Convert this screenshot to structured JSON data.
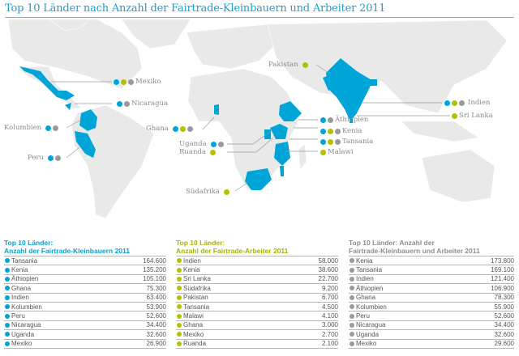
{
  "title": "Top 10 Länder nach Anzahl der Fairtrade-Kleinbauern und Arbeiter 2011",
  "colors": {
    "kleinbauern": "#00a5d8",
    "arbeiter": "#b3c200",
    "gesamt": "#9a9a9a",
    "map_land": "#e8e8e8",
    "highlight": "#00a5d8"
  },
  "map_labels": [
    {
      "name": "Mexiko",
      "dots": [
        "blue",
        "lime",
        "gray"
      ]
    },
    {
      "name": "Nicaragua",
      "dots": [
        "blue",
        "gray"
      ]
    },
    {
      "name": "Kolumbien",
      "dots": [
        "blue",
        "gray"
      ]
    },
    {
      "name": "Peru",
      "dots": [
        "blue",
        "gray"
      ]
    },
    {
      "name": "Ghana",
      "dots": [
        "blue",
        "lime",
        "gray"
      ]
    },
    {
      "name": "Uganda",
      "dots": [
        "blue",
        "gray"
      ]
    },
    {
      "name": "Ruanda",
      "dots": [
        "lime"
      ]
    },
    {
      "name": "Südafrika",
      "dots": [
        "lime"
      ]
    },
    {
      "name": "Pakistan",
      "dots": [
        "lime"
      ]
    },
    {
      "name": "Indien",
      "dots": [
        "blue",
        "lime",
        "gray"
      ]
    },
    {
      "name": "Sri Lanka",
      "dots": [
        "lime"
      ]
    },
    {
      "name": "Äthiopien",
      "dots": [
        "blue",
        "gray"
      ]
    },
    {
      "name": "Kenia",
      "dots": [
        "blue",
        "lime",
        "gray"
      ]
    },
    {
      "name": "Tansania",
      "dots": [
        "blue",
        "lime",
        "gray"
      ]
    },
    {
      "name": "Malawi",
      "dots": [
        "lime"
      ]
    }
  ],
  "tables": [
    {
      "title1": "Top 10 Länder:",
      "title2": "Anzahl der Fairtrade-Kleinbauern 2011",
      "rows": [
        [
          "Tansania",
          "164.600"
        ],
        [
          "Kenia",
          "135.200"
        ],
        [
          "Äthiopien",
          "105.100"
        ],
        [
          "Ghana",
          "75.300"
        ],
        [
          "Indien",
          "63.400"
        ],
        [
          "Kolumbien",
          "53.900"
        ],
        [
          "Peru",
          "52.600"
        ],
        [
          "Nicaragua",
          "34.400"
        ],
        [
          "Uganda",
          "32.600"
        ],
        [
          "Mexiko",
          "26.900"
        ]
      ]
    },
    {
      "title1": "Top 10 Länder:",
      "title2": "Anzahl der Fairtrade-Arbeiter 2011",
      "rows": [
        [
          "Indien",
          "58.000"
        ],
        [
          "Kenia",
          "38.600"
        ],
        [
          "Sri Lanka",
          "22.700"
        ],
        [
          "Südafrika",
          "9.200"
        ],
        [
          "Pakistan",
          "6.700"
        ],
        [
          "Tansania",
          "4.500"
        ],
        [
          "Malawi",
          "4.100"
        ],
        [
          "Ghana",
          "3.000"
        ],
        [
          "Mexiko",
          "2.700"
        ],
        [
          "Ruanda",
          "2.100"
        ]
      ]
    },
    {
      "title1": "Top 10 Länder: Anzahl der",
      "title2": "Fairtrade-Kleinbauern und Arbeiter 2011",
      "rows": [
        [
          "Kenia",
          "173.800"
        ],
        [
          "Tansania",
          "169.100"
        ],
        [
          "Indien",
          "121.400"
        ],
        [
          "Äthiopien",
          "106.900"
        ],
        [
          "Ghana",
          "78.300"
        ],
        [
          "Kolumbien",
          "55.900"
        ],
        [
          "Peru",
          "52.600"
        ],
        [
          "Nicaragua",
          "34.400"
        ],
        [
          "Uganda",
          "32.600"
        ],
        [
          "Mexiko",
          "29.600"
        ]
      ]
    }
  ],
  "chart_data": [
    {
      "type": "table",
      "title": "Top 10 Länder: Anzahl der Fairtrade-Kleinbauern 2011",
      "categories": [
        "Tansania",
        "Kenia",
        "Äthiopien",
        "Ghana",
        "Indien",
        "Kolumbien",
        "Peru",
        "Nicaragua",
        "Uganda",
        "Mexiko"
      ],
      "values": [
        164600,
        135200,
        105100,
        75300,
        63400,
        53900,
        52600,
        34400,
        32600,
        26900
      ]
    },
    {
      "type": "table",
      "title": "Top 10 Länder: Anzahl der Fairtrade-Arbeiter 2011",
      "categories": [
        "Indien",
        "Kenia",
        "Sri Lanka",
        "Südafrika",
        "Pakistan",
        "Tansania",
        "Malawi",
        "Ghana",
        "Mexiko",
        "Ruanda"
      ],
      "values": [
        58000,
        38600,
        22700,
        9200,
        6700,
        4500,
        4100,
        3000,
        2700,
        2100
      ]
    },
    {
      "type": "table",
      "title": "Top 10 Länder: Anzahl der Fairtrade-Kleinbauern und Arbeiter 2011",
      "categories": [
        "Kenia",
        "Tansania",
        "Indien",
        "Äthiopien",
        "Ghana",
        "Kolumbien",
        "Peru",
        "Nicaragua",
        "Uganda",
        "Mexiko"
      ],
      "values": [
        173800,
        169100,
        121400,
        106900,
        78300,
        55900,
        52600,
        34400,
        32600,
        29600
      ]
    }
  ]
}
